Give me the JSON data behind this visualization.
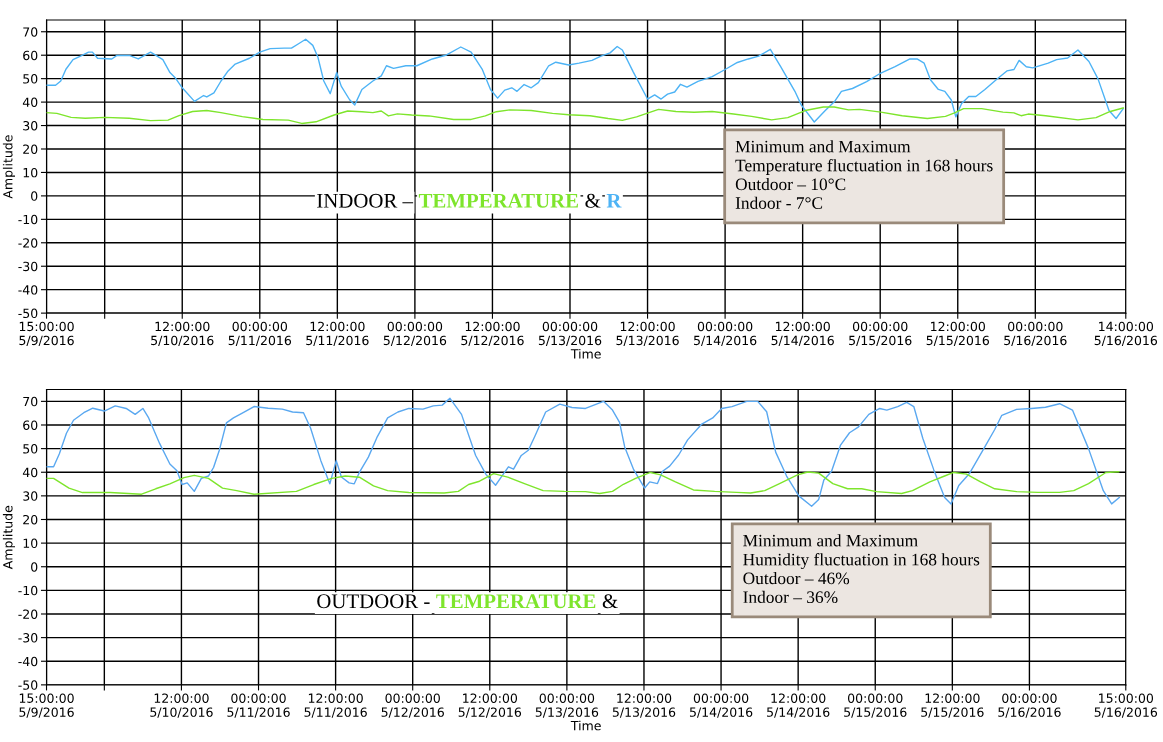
{
  "chart_data": [
    {
      "type": "line",
      "xlabel": "Time",
      "ylabel": "Amplitude",
      "xlim": [
        "2016-05-09T15:00",
        "2016-05-16T14:00"
      ],
      "ylim": [
        -50,
        75
      ],
      "xticks": [
        {
          "value": "2016-05-09T15:00",
          "label": "15:00:00\n5/9/2016"
        },
        {
          "value": "2016-05-10T00:00",
          "label": null
        },
        {
          "value": "2016-05-10T12:00",
          "label": "12:00:00\n5/10/2016"
        },
        {
          "value": "2016-05-11T00:00",
          "label": "00:00:00\n5/11/2016"
        },
        {
          "value": "2016-05-11T12:00",
          "label": "12:00:00\n5/11/2016"
        },
        {
          "value": "2016-05-12T00:00",
          "label": "00:00:00\n5/12/2016"
        },
        {
          "value": "2016-05-12T12:00",
          "label": "12:00:00\n5/12/2016"
        },
        {
          "value": "2016-05-13T00:00",
          "label": "00:00:00\n5/13/2016"
        },
        {
          "value": "2016-05-13T12:00",
          "label": "12:00:00\n5/13/2016"
        },
        {
          "value": "2016-05-14T00:00",
          "label": "00:00:00\n5/14/2016"
        },
        {
          "value": "2016-05-14T12:00",
          "label": "12:00:00\n5/14/2016"
        },
        {
          "value": "2016-05-15T00:00",
          "label": "00:00:00\n5/15/2016"
        },
        {
          "value": "2016-05-15T12:00",
          "label": "12:00:00\n5/15/2016"
        },
        {
          "value": "2016-05-16T00:00",
          "label": "00:00:00\n5/16/2016"
        },
        {
          "value": "2016-05-16T14:00",
          "label": "14:00:00\n5/16/2016"
        }
      ],
      "yticks": [
        -50,
        -40,
        -30,
        -20,
        -10,
        0,
        10,
        20,
        30,
        40,
        50,
        60,
        70
      ],
      "grid": true,
      "marker": "none",
      "line_style": "solid",
      "series": [
        {
          "color": "#4db3f5",
          "x": [
            "2016-05-09T15:00",
            "2016-05-09T16:24",
            "2016-05-09T17:12",
            "2016-05-09T18:00",
            "2016-05-09T19:06",
            "2016-05-09T20:30",
            "2016-05-09T21:30",
            "2016-05-09T22:06",
            "2016-05-09T22:54",
            "2016-05-10T01:06",
            "2016-05-10T01:54",
            "2016-05-10T03:48",
            "2016-05-10T05:12",
            "2016-05-10T07:06",
            "2016-05-10T09:00",
            "2016-05-10T10:06",
            "2016-05-10T10:54",
            "2016-05-10T12:00",
            "2016-05-10T13:54",
            "2016-05-10T15:18",
            "2016-05-10T15:48",
            "2016-05-10T16:54",
            "2016-05-10T18:00",
            "2016-05-10T19:06",
            "2016-05-10T20:12",
            "2016-05-10T22:24",
            "2016-05-11T00:00",
            "2016-05-11T01:36",
            "2016-05-11T03:48",
            "2016-05-11T04:54",
            "2016-05-11T06:00",
            "2016-05-11T07:06",
            "2016-05-11T08:12",
            "2016-05-11T09:00",
            "2016-05-11T09:54",
            "2016-05-11T10:54",
            "2016-05-11T11:54",
            "2016-05-11T12:36",
            "2016-05-11T13:54",
            "2016-05-11T14:42",
            "2016-05-11T15:48",
            "2016-05-11T17:30",
            "2016-05-11T18:48",
            "2016-05-11T19:36",
            "2016-05-11T20:42",
            "2016-05-11T22:36",
            "2016-05-12T00:18",
            "2016-05-12T02:42",
            "2016-05-12T04:54",
            "2016-05-12T07:06",
            "2016-05-12T08:42",
            "2016-05-12T10:24",
            "2016-05-12T11:42",
            "2016-05-12T12:48",
            "2016-05-12T13:54",
            "2016-05-12T15:00",
            "2016-05-12T15:48",
            "2016-05-12T16:54",
            "2016-05-12T18:00",
            "2016-05-12T19:06",
            "2016-05-12T20:42",
            "2016-05-12T21:48",
            "2016-05-12T23:48",
            "2016-05-13T01:24",
            "2016-05-13T03:24",
            "2016-05-13T04:48",
            "2016-05-13T06:12",
            "2016-05-13T07:18",
            "2016-05-13T08:06",
            "2016-05-13T09:48",
            "2016-05-13T12:00",
            "2016-05-13T13:06",
            "2016-05-13T14:06",
            "2016-05-13T15:06",
            "2016-05-13T16:12",
            "2016-05-13T17:06",
            "2016-05-13T18:06",
            "2016-05-13T19:48",
            "2016-05-13T22:00",
            "2016-05-14T00:00",
            "2016-05-14T01:54",
            "2016-05-14T03:36",
            "2016-05-14T05:12",
            "2016-05-14T07:00",
            "2016-05-14T08:36",
            "2016-05-14T10:48",
            "2016-05-14T11:48",
            "2016-05-14T13:48",
            "2016-05-14T15:30",
            "2016-05-14T16:54",
            "2016-05-14T18:00",
            "2016-05-14T19:42",
            "2016-05-14T21:54",
            "2016-05-15T00:06",
            "2016-05-15T02:18",
            "2016-05-15T04:36",
            "2016-05-15T05:42",
            "2016-05-15T06:48",
            "2016-05-15T07:48",
            "2016-05-15T09:00",
            "2016-05-15T10:00",
            "2016-05-15T11:00",
            "2016-05-15T11:42",
            "2016-05-15T12:36",
            "2016-05-15T13:42",
            "2016-05-15T14:48",
            "2016-05-15T16:12",
            "2016-05-15T17:54",
            "2016-05-15T19:36",
            "2016-05-15T20:42",
            "2016-05-15T21:30",
            "2016-05-15T22:36",
            "2016-05-15T23:36",
            "2016-05-16T02:00",
            "2016-05-16T03:18",
            "2016-05-16T05:00",
            "2016-05-16T06:36",
            "2016-05-16T08:18",
            "2016-05-16T09:42",
            "2016-05-16T11:24",
            "2016-05-16T12:30",
            "2016-05-16T13:36"
          ],
          "values": [
            47.2,
            47.2,
            49,
            54,
            58.1,
            59.9,
            61.3,
            61.3,
            58.7,
            58.4,
            59.9,
            59.9,
            58.4,
            61.3,
            58.1,
            52.6,
            50.4,
            46.1,
            40.3,
            42.8,
            42.2,
            43.9,
            49,
            53.3,
            56.2,
            58.7,
            61.3,
            62.8,
            63,
            63,
            64.9,
            66.8,
            64.2,
            59.1,
            49,
            43.6,
            52.6,
            46.8,
            41,
            38.8,
            45.4,
            49,
            51.2,
            55.5,
            54.4,
            55.5,
            55.5,
            58.4,
            60.1,
            63.5,
            61.3,
            54.1,
            45.4,
            41.7,
            45.1,
            46.1,
            44.6,
            47.5,
            46.1,
            48.3,
            55.5,
            57,
            55.8,
            56.6,
            57.8,
            59.6,
            61,
            63.7,
            62.2,
            52.8,
            41.3,
            43.1,
            41.3,
            43.4,
            44.3,
            47.6,
            46.4,
            48.8,
            50.9,
            53.9,
            56.9,
            58.4,
            59.6,
            62.5,
            55.1,
            44.6,
            38.7,
            31.5,
            36.4,
            40.1,
            44.6,
            45.8,
            48.7,
            52.4,
            55.1,
            58.4,
            58.4,
            56.6,
            49.4,
            45.4,
            44.6,
            40.9,
            33.7,
            39.4,
            42.4,
            42.4,
            45.4,
            49.4,
            53.3,
            53.9,
            57.8,
            55.1,
            54.6,
            56.6,
            58.1,
            58.8,
            62.2,
            57.3,
            49.9,
            36.4,
            33,
            37.2
          ]
        },
        {
          "color": "#7ee52c",
          "x": [
            "2016-05-09T15:00",
            "2016-05-09T16:36",
            "2016-05-09T18:48",
            "2016-05-09T21:00",
            "2016-05-10T00:00",
            "2016-05-10T03:48",
            "2016-05-10T07:06",
            "2016-05-10T09:48",
            "2016-05-10T11:30",
            "2016-05-10T13:36",
            "2016-05-10T15:48",
            "2016-05-10T18:00",
            "2016-05-10T21:18",
            "2016-05-11T00:30",
            "2016-05-11T04:24",
            "2016-05-11T06:30",
            "2016-05-11T08:42",
            "2016-05-11T11:30",
            "2016-05-11T13:36",
            "2016-05-11T15:48",
            "2016-05-11T17:30",
            "2016-05-11T18:48",
            "2016-05-11T19:54",
            "2016-05-11T21:18",
            "2016-05-11T23:30",
            "2016-05-12T02:12",
            "2016-05-12T06:00",
            "2016-05-12T08:42",
            "2016-05-12T10:54",
            "2016-05-12T12:36",
            "2016-05-12T14:42",
            "2016-05-12T18:00",
            "2016-05-12T21:18",
            "2016-05-12T23:48",
            "2016-05-13T03:06",
            "2016-05-13T05:54",
            "2016-05-13T08:06",
            "2016-05-13T10:18",
            "2016-05-13T13:42",
            "2016-05-13T16:24",
            "2016-05-13T19:12",
            "2016-05-13T22:00",
            "2016-05-14T01:18",
            "2016-05-14T04:06",
            "2016-05-14T07:12",
            "2016-05-14T09:42",
            "2016-05-14T12:24",
            "2016-05-14T15:12",
            "2016-05-14T16:54",
            "2016-05-14T19:06",
            "2016-05-14T20:48",
            "2016-05-15T00:06",
            "2016-05-15T03:24",
            "2016-05-15T07:18",
            "2016-05-15T10:06",
            "2016-05-15T11:30",
            "2016-05-15T12:54",
            "2016-05-15T15:42",
            "2016-05-15T19:00",
            "2016-05-15T20:42",
            "2016-05-15T21:48",
            "2016-05-15T22:54",
            "2016-05-16T01:36",
            "2016-05-16T06:36",
            "2016-05-16T09:24",
            "2016-05-16T11:36",
            "2016-05-16T13:36"
          ],
          "values": [
            35.5,
            35.2,
            33.5,
            33.1,
            33.5,
            33.1,
            32.1,
            32.3,
            34.2,
            36,
            36.4,
            35.5,
            33.8,
            32.6,
            32.3,
            30.9,
            31.6,
            34.5,
            36.2,
            35.9,
            35.5,
            36.2,
            34.1,
            35,
            34.5,
            34.1,
            32.6,
            32.6,
            34.1,
            35.9,
            36.7,
            36.4,
            35.2,
            34.6,
            34.2,
            33,
            32.2,
            33.7,
            36.9,
            36,
            35.7,
            36,
            34.9,
            33.9,
            32.4,
            33.4,
            36.4,
            37.9,
            37.9,
            36.7,
            36.9,
            35.7,
            34.2,
            33,
            33.9,
            35.4,
            37.2,
            37.2,
            35.7,
            35.4,
            34.2,
            34.9,
            34.2,
            32.4,
            33.4,
            36,
            37.5
          ]
        }
      ],
      "annotations": [
        "INDOOR –",
        "TEMPERATURE",
        "&",
        "R",
        "Minimum and Maximum\nTemperature fluctuation in 168 hours\nOutdoor – 10°C\nIndoor - 7°C"
      ]
    },
    {
      "type": "line",
      "xlabel": "Time",
      "ylabel": "Amplitude",
      "xlim": [
        "2016-05-09T15:00",
        "2016-05-16T15:00"
      ],
      "ylim": [
        -50,
        75
      ],
      "xticks": [
        {
          "value": "2016-05-09T15:00",
          "label": "15:00:00\n5/9/2016"
        },
        {
          "value": "2016-05-10T00:00",
          "label": null
        },
        {
          "value": "2016-05-10T12:00",
          "label": "12:00:00\n5/10/2016"
        },
        {
          "value": "2016-05-11T00:00",
          "label": "00:00:00\n5/11/2016"
        },
        {
          "value": "2016-05-11T12:00",
          "label": "12:00:00\n5/11/2016"
        },
        {
          "value": "2016-05-12T00:00",
          "label": "00:00:00\n5/12/2016"
        },
        {
          "value": "2016-05-12T12:00",
          "label": "12:00:00\n5/12/2016"
        },
        {
          "value": "2016-05-13T00:00",
          "label": "00:00:00\n5/13/2016"
        },
        {
          "value": "2016-05-13T12:00",
          "label": "12:00:00\n5/13/2016"
        },
        {
          "value": "2016-05-14T00:00",
          "label": "00:00:00\n5/14/2016"
        },
        {
          "value": "2016-05-14T12:00",
          "label": "12:00:00\n5/14/2016"
        },
        {
          "value": "2016-05-15T00:00",
          "label": "00:00:00\n5/15/2016"
        },
        {
          "value": "2016-05-15T12:00",
          "label": "12:00:00\n5/15/2016"
        },
        {
          "value": "2016-05-16T00:00",
          "label": "00:00:00\n5/16/2016"
        },
        {
          "value": "2016-05-16T15:00",
          "label": "15:00:00\n5/16/2016"
        }
      ],
      "yticks": [
        -50,
        -40,
        -30,
        -20,
        -10,
        0,
        10,
        20,
        30,
        40,
        50,
        60,
        70
      ],
      "grid": true,
      "marker": "none",
      "line_style": "solid",
      "series": [
        {
          "color": "#5aa8f0",
          "x": [
            "2016-05-09T15:00",
            "2016-05-09T16:06",
            "2016-05-09T17:00",
            "2016-05-09T18:06",
            "2016-05-09T19:12",
            "2016-05-09T20:48",
            "2016-05-09T22:12",
            "2016-05-10T00:00",
            "2016-05-10T01:42",
            "2016-05-10T03:24",
            "2016-05-10T04:48",
            "2016-05-10T06:00",
            "2016-05-10T06:54",
            "2016-05-10T08:36",
            "2016-05-10T10:12",
            "2016-05-10T11:18",
            "2016-05-10T12:06",
            "2016-05-10T12:54",
            "2016-05-10T14:00",
            "2016-05-10T15:06",
            "2016-05-10T16:12",
            "2016-05-10T17:00",
            "2016-05-10T17:54",
            "2016-05-10T19:00",
            "2016-05-10T20:06",
            "2016-05-10T21:24",
            "2016-05-10T23:18",
            "2016-05-11T01:30",
            "2016-05-11T03:42",
            "2016-05-11T05:18",
            "2016-05-11T07:00",
            "2016-05-11T08:06",
            "2016-05-11T09:42",
            "2016-05-11T11:06",
            "2016-05-11T12:06",
            "2016-05-11T12:54",
            "2016-05-11T14:06",
            "2016-05-11T14:54",
            "2016-05-11T15:42",
            "2016-05-11T17:06",
            "2016-05-11T18:30",
            "2016-05-11T20:06",
            "2016-05-11T21:42",
            "2016-05-11T23:24",
            "2016-05-12T01:36",
            "2016-05-12T03:12",
            "2016-05-12T04:36",
            "2016-05-12T05:48",
            "2016-05-12T07:36",
            "2016-05-12T09:48",
            "2016-05-12T11:24",
            "2016-05-12T12:54",
            "2016-05-12T13:48",
            "2016-05-12T14:54",
            "2016-05-12T15:42",
            "2016-05-12T16:54",
            "2016-05-12T18:00",
            "2016-05-12T19:00",
            "2016-05-12T20:42",
            "2016-05-12T22:54",
            "2016-05-13T00:48",
            "2016-05-13T02:54",
            "2016-05-13T05:42",
            "2016-05-13T07:06",
            "2016-05-13T08:12",
            "2016-05-13T09:00",
            "2016-05-13T10:24",
            "2016-05-13T12:06",
            "2016-05-13T12:54",
            "2016-05-13T14:06",
            "2016-05-13T14:54",
            "2016-05-13T16:00",
            "2016-05-13T17:24",
            "2016-05-13T18:48",
            "2016-05-13T21:00",
            "2016-05-13T22:42",
            "2016-05-14T00:06",
            "2016-05-14T01:42",
            "2016-05-14T04:00",
            "2016-05-14T05:42",
            "2016-05-14T07:06",
            "2016-05-14T08:30",
            "2016-05-14T10:12",
            "2016-05-14T12:06",
            "2016-05-14T14:06",
            "2016-05-14T15:12",
            "2016-05-14T16:00",
            "2016-05-14T17:12",
            "2016-05-14T18:36",
            "2016-05-14T20:00",
            "2016-05-14T21:24",
            "2016-05-14T23:00",
            "2016-05-15T00:42",
            "2016-05-15T01:48",
            "2016-05-15T03:30",
            "2016-05-15T04:54",
            "2016-05-15T06:00",
            "2016-05-15T07:24",
            "2016-05-15T09:06",
            "2016-05-15T10:48",
            "2016-05-15T11:48",
            "2016-05-15T13:00",
            "2016-05-15T14:42",
            "2016-05-15T16:54",
            "2016-05-15T18:36",
            "2016-05-15T19:42",
            "2016-05-15T22:00",
            "2016-05-16T00:18",
            "2016-05-16T02:30",
            "2016-05-16T04:42",
            "2016-05-16T06:42",
            "2016-05-16T09:12",
            "2016-05-16T11:30",
            "2016-05-16T12:48",
            "2016-05-16T14:00"
          ],
          "values": [
            42.3,
            42.3,
            47.8,
            56.5,
            62,
            65.2,
            67.1,
            65.9,
            68.1,
            67,
            64.5,
            67,
            63,
            52.2,
            43.5,
            40.6,
            34.8,
            35.5,
            31.9,
            37.4,
            38.4,
            42,
            49.3,
            60.9,
            63,
            64.9,
            67.8,
            67.1,
            66.7,
            65.5,
            65.2,
            58.7,
            44.9,
            35.1,
            44.9,
            38,
            35.5,
            35.1,
            39.9,
            46.4,
            55.1,
            63,
            65.5,
            67,
            66.7,
            68.1,
            68.4,
            71.3,
            64.5,
            47.1,
            39.1,
            34.5,
            38,
            42.3,
            41.3,
            47.1,
            49.3,
            55.1,
            65.5,
            68.8,
            67.4,
            67,
            70,
            66.3,
            61.1,
            50.7,
            41.1,
            33.3,
            35.9,
            35.2,
            40.4,
            42.6,
            47.3,
            53.7,
            60.4,
            63,
            67,
            67.8,
            70,
            70,
            65.6,
            48.5,
            38.4,
            30,
            25.6,
            28.5,
            36.7,
            40.4,
            51.5,
            56.7,
            59.2,
            64.5,
            67,
            66.3,
            67.8,
            69.6,
            67.8,
            54.4,
            41.1,
            29.3,
            26.6,
            34.4,
            39.6,
            50,
            58.1,
            64.1,
            66.6,
            67,
            67.5,
            69,
            66.3,
            50,
            32.2,
            26.6,
            29.3
          ]
        },
        {
          "color": "#7ee52c",
          "x": [
            "2016-05-09T15:00",
            "2016-05-09T16:06",
            "2016-05-09T18:30",
            "2016-05-09T20:36",
            "2016-05-10T00:54",
            "2016-05-10T05:48",
            "2016-05-10T08:00",
            "2016-05-10T10:12",
            "2016-05-10T12:24",
            "2016-05-10T14:00",
            "2016-05-10T16:12",
            "2016-05-10T18:24",
            "2016-05-10T20:36",
            "2016-05-10T23:18",
            "2016-05-11T05:54",
            "2016-05-11T08:36",
            "2016-05-11T11:24",
            "2016-05-11T13:30",
            "2016-05-11T15:42",
            "2016-05-11T17:54",
            "2016-05-11T20:06",
            "2016-05-11T23:24",
            "2016-05-12T04:54",
            "2016-05-12T07:06",
            "2016-05-12T08:42",
            "2016-05-12T10:24",
            "2016-05-12T12:36",
            "2016-05-12T14:48",
            "2016-05-12T17:30",
            "2016-05-12T20:18",
            "2016-05-12T23:36",
            "2016-05-13T02:54",
            "2016-05-13T05:06",
            "2016-05-13T07:06",
            "2016-05-13T08:48",
            "2016-05-13T10:42",
            "2016-05-13T13:00",
            "2016-05-13T14:36",
            "2016-05-13T16:54",
            "2016-05-13T19:42",
            "2016-05-13T23:00",
            "2016-05-14T02:24",
            "2016-05-14T04:36",
            "2016-05-14T06:48",
            "2016-05-14T09:06",
            "2016-05-14T11:54",
            "2016-05-14T13:30",
            "2016-05-14T15:12",
            "2016-05-14T17:24",
            "2016-05-14T19:42",
            "2016-05-14T21:54",
            "2016-05-15T00:12",
            "2016-05-15T04:06",
            "2016-05-15T05:48",
            "2016-05-15T08:30",
            "2016-05-15T10:48",
            "2016-05-15T12:12",
            "2016-05-15T14:12",
            "2016-05-15T16:24",
            "2016-05-15T18:36",
            "2016-05-15T22:00",
            "2016-05-16T01:18",
            "2016-05-16T04:42",
            "2016-05-16T06:54",
            "2016-05-16T09:12",
            "2016-05-16T11:54",
            "2016-05-16T13:54"
          ],
          "values": [
            37.4,
            37.4,
            33.3,
            31.4,
            31.4,
            30.7,
            33,
            35.1,
            37.7,
            38.7,
            37.4,
            33.3,
            32.2,
            30.7,
            31.9,
            34.8,
            37.4,
            38.4,
            37.9,
            34.2,
            32.2,
            31.4,
            31.2,
            31.9,
            34.8,
            36.2,
            39.4,
            37.9,
            35.1,
            32.2,
            31.9,
            31.8,
            31,
            31.9,
            34.9,
            37.4,
            39.9,
            38.9,
            35.9,
            32.5,
            31.9,
            31.5,
            31.2,
            32.2,
            35.2,
            38.9,
            40.1,
            39.6,
            35.2,
            33,
            33,
            31.8,
            31,
            32.2,
            35.9,
            38.4,
            39.9,
            39.2,
            35.9,
            33,
            31.8,
            31.5,
            31.5,
            32.2,
            35.2,
            39.9,
            40.2
          ]
        }
      ],
      "annotations": [
        "OUTDOOR -",
        "TEMPERATURE",
        "&",
        "Minimum and Maximum\nHumidity fluctuation in 168 hours\nOutdoor – 46%\nIndoor – 36%"
      ]
    }
  ]
}
